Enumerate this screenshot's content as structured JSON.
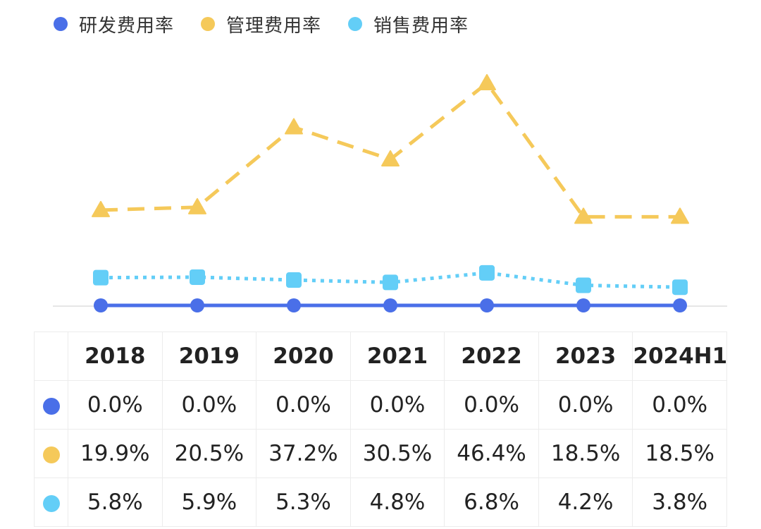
{
  "legend": [
    {
      "label": "研发费用率",
      "color": "#4a6fe8"
    },
    {
      "label": "管理费用率",
      "color": "#f5c95a"
    },
    {
      "label": "销售费用率",
      "color": "#63cef7"
    }
  ],
  "chart_data": {
    "type": "line",
    "categories": [
      "2018",
      "2019",
      "2020",
      "2021",
      "2022",
      "2023",
      "2024H1"
    ],
    "series": [
      {
        "name": "研发费用率",
        "color": "#4a6fe8",
        "marker": "circle",
        "line": "solid",
        "values": [
          0.0,
          0.0,
          0.0,
          0.0,
          0.0,
          0.0,
          0.0
        ],
        "labels": [
          "0.0%",
          "0.0%",
          "0.0%",
          "0.0%",
          "0.0%",
          "0.0%",
          "0.0%"
        ]
      },
      {
        "name": "管理费用率",
        "color": "#f5c95a",
        "marker": "triangle",
        "line": "dashed",
        "values": [
          19.9,
          20.5,
          37.2,
          30.5,
          46.4,
          18.5,
          18.5
        ],
        "labels": [
          "19.9%",
          "20.5%",
          "37.2%",
          "30.5%",
          "46.4%",
          "18.5%",
          "18.5%"
        ]
      },
      {
        "name": "销售费用率",
        "color": "#63cef7",
        "marker": "square",
        "line": "dotted",
        "values": [
          5.8,
          5.9,
          5.3,
          4.8,
          6.8,
          4.2,
          3.8
        ],
        "labels": [
          "5.8%",
          "5.9%",
          "5.3%",
          "4.8%",
          "6.8%",
          "4.2%",
          "3.8%"
        ]
      }
    ],
    "ylim": [
      0,
      46.4
    ],
    "title": "",
    "xlabel": "",
    "ylabel": "",
    "grid": false,
    "legend_position": "top-left"
  }
}
